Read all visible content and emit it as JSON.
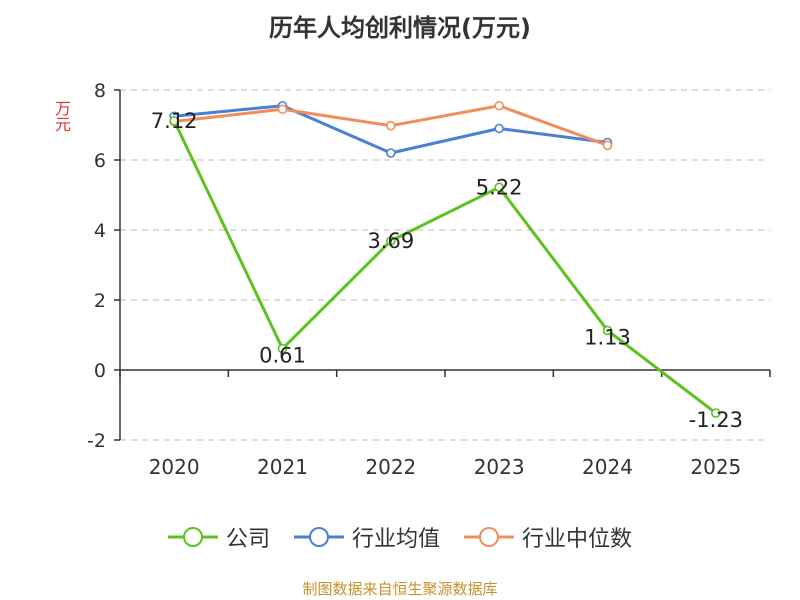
{
  "title": "历年人均创利情况(万元)",
  "source_note": "制图数据来自恒生聚源数据库",
  "chart_data": {
    "type": "line",
    "title": "历年人均创利情况(万元)",
    "ylabel": "万元",
    "xlabel": "",
    "categories": [
      "2020",
      "2021",
      "2022",
      "2023",
      "2024",
      "2025"
    ],
    "ylim": [
      -2,
      8
    ],
    "yticks": [
      -2,
      0,
      2,
      4,
      6,
      8
    ],
    "grid": true,
    "legend_position": "bottom",
    "series": [
      {
        "name": "公司",
        "color": "#5bc21f",
        "values": [
          7.12,
          0.61,
          3.69,
          5.22,
          1.13,
          -1.23
        ],
        "labels": [
          "7.12",
          "0.61",
          "3.69",
          "5.22",
          "1.13",
          "-1.23"
        ]
      },
      {
        "name": "行业均值",
        "color": "#4a7fd6",
        "values": [
          7.25,
          7.55,
          6.2,
          6.9,
          6.5,
          null
        ]
      },
      {
        "name": "行业中位数",
        "color": "#f28d5a",
        "values": [
          7.1,
          7.45,
          6.98,
          7.55,
          6.42,
          null
        ]
      }
    ]
  }
}
